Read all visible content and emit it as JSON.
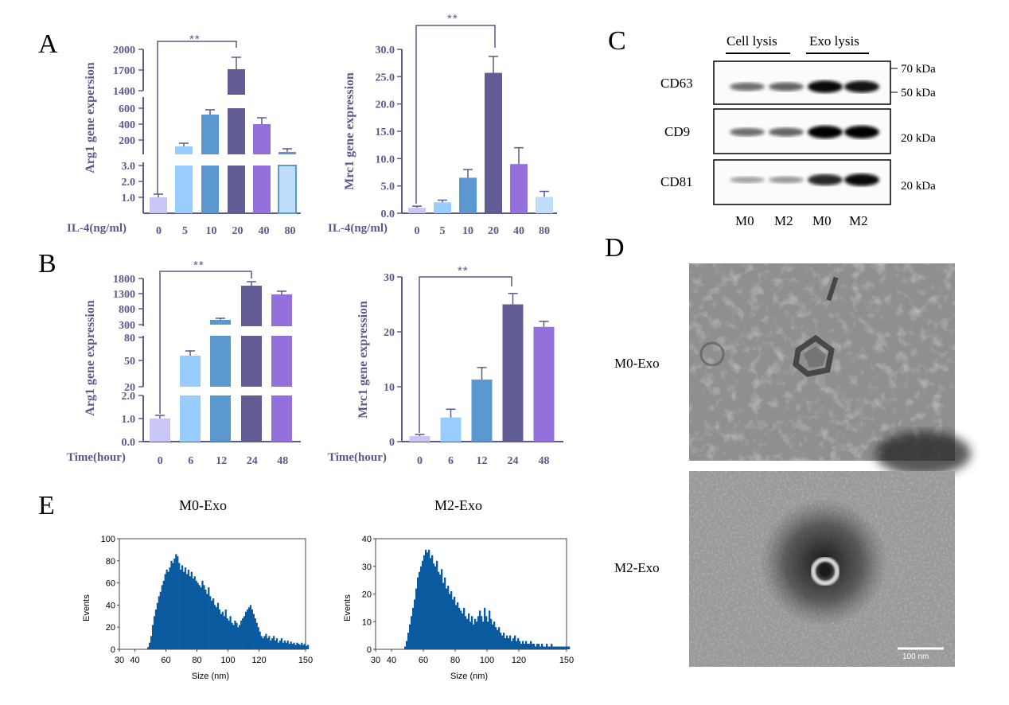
{
  "panels": {
    "A": "A",
    "B": "B",
    "C": "C",
    "D": "D",
    "E": "E"
  },
  "colors": {
    "axis": "#5a5a8c",
    "bars": [
      "#c9c6f5",
      "#99ccff",
      "#5b98cf",
      "#615d94",
      "#9370db",
      "#bfdcf8"
    ],
    "hist": "#0a5aa0"
  },
  "chart_data": [
    {
      "id": "A-left",
      "type": "bar",
      "ylabel": "Arg1 gene expersion",
      "xlabel": "IL-4(ng/ml)",
      "categories": [
        "0",
        "5",
        "10",
        "20",
        "40",
        "80"
      ],
      "values": [
        1.0,
        100,
        520,
        1700,
        390,
        50
      ],
      "errors": [
        0.1,
        20,
        50,
        180,
        70,
        15
      ],
      "ylim": [
        0,
        2000
      ],
      "axis_break": true,
      "yticks": [
        "2000",
        "1700",
        "1400",
        "600",
        "400",
        "200",
        "3.0",
        "2.0",
        "1.0"
      ],
      "significance": {
        "label": "**",
        "from": "0",
        "to": "20"
      }
    },
    {
      "id": "A-right",
      "type": "bar",
      "ylabel": "Mrc1 gene expression",
      "xlabel": "IL-4(ng/ml)",
      "categories": [
        "0",
        "5",
        "10",
        "20",
        "40",
        "80"
      ],
      "values": [
        1.0,
        2.0,
        6.5,
        25.7,
        9.0,
        3.0
      ],
      "errors": [
        0.3,
        0.4,
        1.5,
        3.0,
        3.0,
        1.0
      ],
      "ylim": [
        0,
        30
      ],
      "yticks": [
        "0.0",
        "5.0",
        "10.0",
        "15.0",
        "20.0",
        "25.0",
        "30.0"
      ],
      "significance": {
        "label": "**",
        "from": "0",
        "to": "20"
      }
    },
    {
      "id": "B-left",
      "type": "bar",
      "ylabel": "Arg1 gene expression",
      "xlabel": "Time(hour)",
      "categories": [
        "0",
        "6",
        "12",
        "24",
        "48"
      ],
      "values": [
        1.0,
        55,
        400,
        1550,
        1270
      ],
      "errors": [
        0.1,
        5,
        50,
        120,
        80
      ],
      "ylim": [
        0,
        1800
      ],
      "axis_break": true,
      "yticks": [
        "1800",
        "1300",
        "800",
        "300",
        "80",
        "50",
        "20",
        "2.0",
        "1.0",
        "0.0"
      ],
      "significance": {
        "label": "**",
        "from": "0",
        "to": "24"
      }
    },
    {
      "id": "B-right",
      "type": "bar",
      "ylabel": "Mrc1 gene expression",
      "xlabel": "Time(hour)",
      "categories": [
        "0",
        "6",
        "12",
        "24",
        "48"
      ],
      "values": [
        1.0,
        4.4,
        11.3,
        25.0,
        20.9
      ],
      "errors": [
        0.3,
        1.5,
        2.2,
        2.0,
        1.0
      ],
      "ylim": [
        0,
        30
      ],
      "yticks": [
        "0",
        "10",
        "20",
        "30"
      ],
      "significance": {
        "label": "**",
        "from": "0",
        "to": "24"
      }
    },
    {
      "id": "E-left",
      "type": "bar",
      "title": "M0-Exo",
      "xlabel": "Size (nm)",
      "ylabel": "Events",
      "xlim": [
        30,
        150
      ],
      "ylim": [
        0,
        100
      ],
      "xticks": [
        "30",
        "40",
        "60",
        "80",
        "100",
        "120",
        "150"
      ],
      "yticks": [
        "0",
        "20",
        "40",
        "60",
        "80",
        "100"
      ],
      "bins_start": 40,
      "bin_width": 1,
      "values": [
        0,
        0,
        0,
        0,
        0,
        0,
        0,
        0,
        2,
        6,
        12,
        22,
        30,
        36,
        42,
        48,
        52,
        58,
        62,
        68,
        72,
        70,
        74,
        80,
        78,
        82,
        86,
        84,
        78,
        72,
        76,
        70,
        74,
        68,
        72,
        66,
        70,
        64,
        66,
        62,
        60,
        58,
        56,
        62,
        58,
        54,
        50,
        56,
        48,
        44,
        46,
        40,
        38,
        42,
        36,
        32,
        34,
        30,
        36,
        28,
        26,
        30,
        24,
        22,
        26,
        24,
        20,
        22,
        26,
        28,
        30,
        34,
        36,
        38,
        40,
        36,
        32,
        28,
        24,
        20,
        16,
        12,
        10,
        12,
        14,
        10,
        12,
        8,
        10,
        12,
        8,
        10,
        6,
        8,
        10,
        6,
        8,
        6,
        8,
        5,
        7,
        5,
        6,
        4,
        6,
        5,
        4,
        6,
        4,
        5,
        3,
        4
      ]
    },
    {
      "id": "E-right",
      "type": "bar",
      "title": "M2-Exo",
      "xlabel": "Size (nm)",
      "ylabel": "Events",
      "xlim": [
        30,
        150
      ],
      "ylim": [
        0,
        40
      ],
      "xticks": [
        "30",
        "40",
        "60",
        "80",
        "100",
        "120",
        "150"
      ],
      "yticks": [
        "0",
        "10",
        "20",
        "30",
        "40"
      ],
      "bins_start": 40,
      "bin_width": 1,
      "values": [
        0,
        0,
        0,
        0,
        0,
        0,
        0,
        0,
        1,
        3,
        6,
        9,
        12,
        15,
        18,
        22,
        26,
        28,
        30,
        32,
        34,
        36,
        35,
        36,
        33,
        34,
        31,
        30,
        32,
        28,
        27,
        29,
        24,
        26,
        22,
        23,
        20,
        21,
        18,
        19,
        16,
        17,
        15,
        14,
        13,
        15,
        12,
        11,
        13,
        10,
        12,
        9,
        11,
        10,
        12,
        14,
        12,
        10,
        15,
        12,
        10,
        14,
        11,
        9,
        10,
        8,
        7,
        8,
        6,
        5,
        6,
        4,
        5,
        4,
        5,
        3,
        4,
        5,
        3,
        4,
        3,
        2,
        3,
        2,
        3,
        2,
        2,
        3,
        2,
        2,
        1,
        2,
        2,
        1,
        2,
        1,
        1,
        2,
        1,
        1,
        2,
        1,
        1,
        1,
        1,
        1,
        1,
        1,
        1,
        1,
        1,
        1
      ]
    }
  ],
  "western_blot": {
    "groups": [
      "Cell lysis",
      "Exo lysis"
    ],
    "rows": [
      {
        "protein": "CD63",
        "markers": [
          "70 kDa",
          "50 kDa"
        ]
      },
      {
        "protein": "CD9",
        "markers": [
          "20 kDa"
        ]
      },
      {
        "protein": "CD81",
        "markers": [
          "20 kDa"
        ]
      }
    ],
    "lanes": [
      "M0",
      "M2",
      "M0",
      "M2"
    ],
    "band_intensity": [
      [
        0.45,
        0.5,
        0.95,
        0.9
      ],
      [
        0.45,
        0.5,
        1.0,
        1.0
      ],
      [
        0.2,
        0.25,
        0.8,
        0.95
      ]
    ]
  },
  "em": {
    "images": [
      {
        "label": "M0-Exo"
      },
      {
        "label": "M2-Exo"
      }
    ],
    "scale_bar": "100 nm"
  }
}
